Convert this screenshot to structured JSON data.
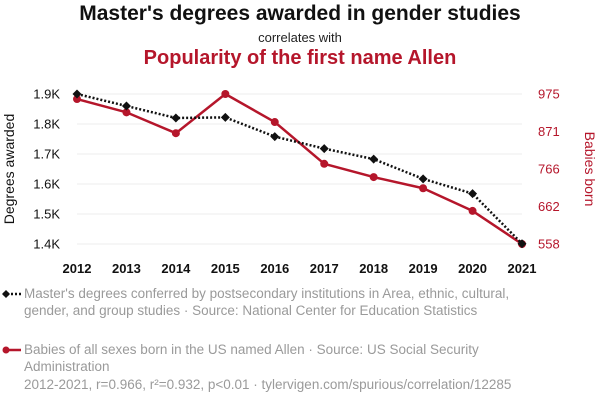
{
  "title": "Master's degrees awarded in gender studies",
  "subtitle": "correlates with",
  "title2": "Popularity of the first name Allen",
  "colors": {
    "series1": "#111111",
    "series2": "#b5162b",
    "grid": "#eeeeee"
  },
  "chart_data": {
    "type": "line",
    "x": [
      2012,
      2013,
      2014,
      2015,
      2016,
      2017,
      2018,
      2019,
      2020,
      2021
    ],
    "series": [
      {
        "name": "Master's degrees conferred by postsecondary institutions in Area, ethnic, cultural, gender, and group studies · Source: National Center for Education Statistics",
        "axis": "left",
        "style": "dotted",
        "marker": "diamond",
        "values": [
          1900,
          1860,
          1820,
          1822,
          1758,
          1718,
          1683,
          1617,
          1568,
          1401
        ]
      },
      {
        "name": "Babies of all sexes born in the US named Allen · Source: US Social Security Administration",
        "axis": "right",
        "style": "solid",
        "marker": "circle",
        "values": [
          961,
          924,
          866,
          975,
          897,
          781,
          744,
          713,
          650,
          558
        ]
      }
    ],
    "xlabel": "",
    "ylabel_left": "Degrees awarded",
    "ylabel_right": "Babies born",
    "ylim_left": [
      1400,
      1900
    ],
    "ylim_right": [
      558,
      975
    ],
    "yticks_left": [
      "1.4K",
      "1.5K",
      "1.6K",
      "1.7K",
      "1.8K",
      "1.9K"
    ],
    "yticks_left_values": [
      1400,
      1500,
      1600,
      1700,
      1800,
      1900
    ],
    "yticks_right": [
      "558",
      "662",
      "766",
      "871",
      "975"
    ],
    "yticks_right_values": [
      558,
      662,
      766,
      871,
      975
    ],
    "grid": true,
    "legend_placement": "bottom"
  },
  "legend": {
    "series1": "Master's degrees conferred by postsecondary institutions in Area, ethnic, cultural, gender, and group studies · Source: National Center for Education Statistics",
    "series2": "Babies of all sexes born in the US named Allen · Source: US Social Security Administration"
  },
  "footer": "2012-2021, r=0.966, r²=0.932, p<0.01 · tylervigen.com/spurious/correlation/12285"
}
